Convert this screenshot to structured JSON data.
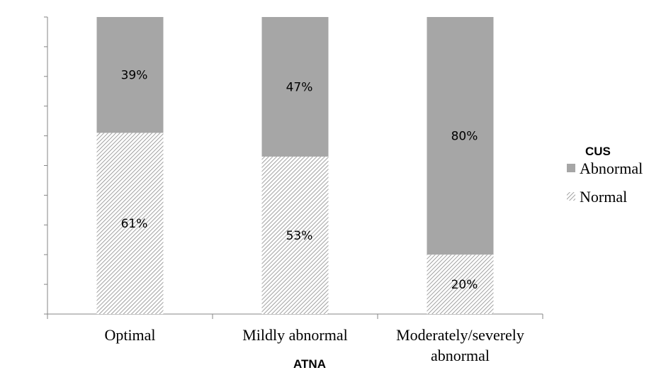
{
  "chart_data": {
    "type": "bar",
    "stacked": true,
    "percent_stacked": true,
    "categories": [
      "Optimal",
      "Mildly abnormal",
      "Moderately/severely abnormal"
    ],
    "category_lines": [
      [
        "Optimal"
      ],
      [
        "Mildly abnormal"
      ],
      [
        "Moderately/severely",
        "abnormal"
      ]
    ],
    "series": [
      {
        "name": "Normal",
        "values": [
          61,
          53,
          20
        ],
        "labels": [
          "61%",
          "53%",
          "20%"
        ],
        "fill": "hatch",
        "color": "#999999"
      },
      {
        "name": "Abnormal",
        "values": [
          39,
          47,
          80
        ],
        "labels": [
          "39%",
          "47%",
          "80%"
        ],
        "fill": "solid",
        "color": "#a6a6a6"
      }
    ],
    "xlabel": "ATNA",
    "ylabel": "",
    "ylim": [
      0,
      100
    ],
    "legend": {
      "title": "CUS",
      "position": "right",
      "order": [
        "Abnormal",
        "Normal"
      ]
    },
    "grid": false
  }
}
